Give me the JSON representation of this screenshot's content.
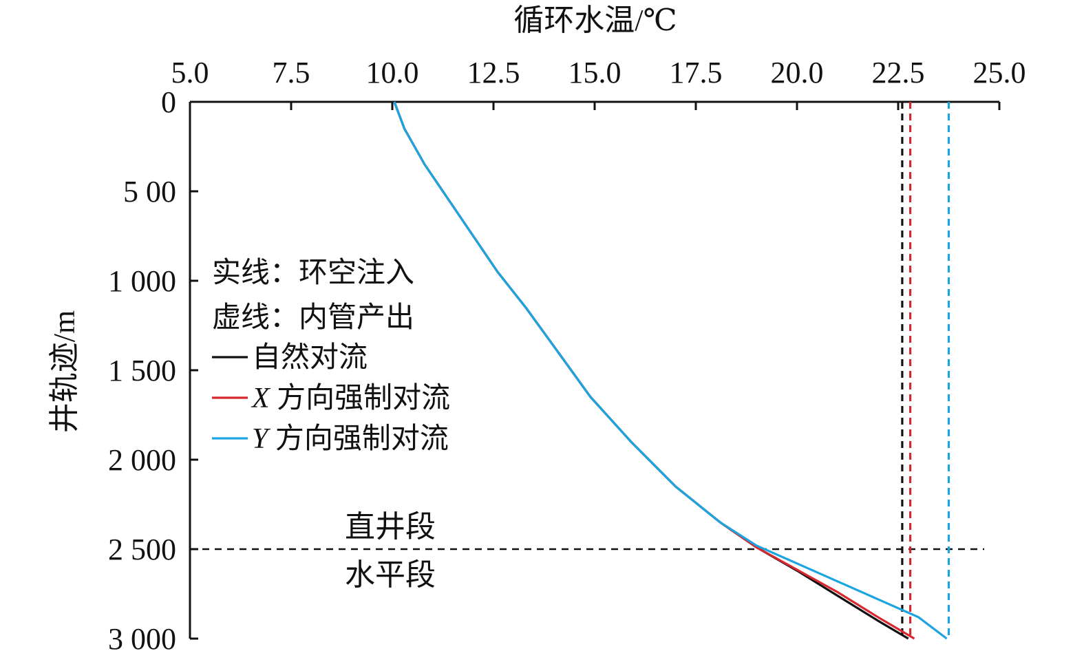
{
  "chart_data": {
    "type": "line",
    "xlabel": "循环水温/℃",
    "ylabel": "井轨迹/m",
    "x_axis_position": "top",
    "y_axis_inverted": true,
    "xlim": [
      5.0,
      25.0
    ],
    "ylim": [
      0,
      3000
    ],
    "x_ticks": [
      "5.0",
      "7.5",
      "10.0",
      "12.5",
      "15.0",
      "17.5",
      "20.0",
      "22.5",
      "25.0"
    ],
    "y_ticks": [
      "0",
      "5 00",
      "1 000",
      "1 500",
      "2 000",
      "2 500",
      "3 000"
    ],
    "x_tick_values": [
      5.0,
      7.5,
      10.0,
      12.5,
      15.0,
      17.5,
      20.0,
      22.5,
      25.0
    ],
    "y_tick_values": [
      0,
      500,
      1000,
      1500,
      2000,
      2500,
      3000
    ],
    "grid": false,
    "legend": {
      "placement": "left-middle",
      "line1": "实线：环空注入",
      "line2": "虚线：内管产出",
      "items": [
        {
          "label": "自然对流",
          "prefix": "",
          "color": "#111111"
        },
        {
          "label": "方向强制对流",
          "prefix": "X",
          "color": "#d7282f"
        },
        {
          "label": "方向强制对流",
          "prefix": "Y",
          "color": "#1ba5e0"
        }
      ]
    },
    "colors": {
      "natural": "#111111",
      "x_forced": "#d7282f",
      "y_forced": "#1ba5e0"
    },
    "boundary": {
      "depth": 2500,
      "label_above": "直井段",
      "label_below": "水平段"
    },
    "series": [
      {
        "name": "自然对流",
        "style": "solid",
        "color": "#111111",
        "points": [
          [
            10.05,
            0
          ],
          [
            10.3,
            150
          ],
          [
            10.8,
            350
          ],
          [
            11.4,
            550
          ],
          [
            12.0,
            750
          ],
          [
            12.6,
            950
          ],
          [
            13.3,
            1150
          ],
          [
            14.1,
            1400
          ],
          [
            14.9,
            1650
          ],
          [
            15.9,
            1900
          ],
          [
            17.0,
            2150
          ],
          [
            18.1,
            2350
          ],
          [
            19.0,
            2490
          ],
          [
            20.0,
            2620
          ],
          [
            21.0,
            2760
          ],
          [
            22.0,
            2900
          ],
          [
            22.75,
            3000
          ]
        ]
      },
      {
        "name": "X 方向强制对流",
        "style": "solid",
        "color": "#d7282f",
        "points": [
          [
            10.05,
            0
          ],
          [
            10.3,
            150
          ],
          [
            10.8,
            350
          ],
          [
            11.4,
            550
          ],
          [
            12.0,
            750
          ],
          [
            12.6,
            950
          ],
          [
            13.3,
            1150
          ],
          [
            14.1,
            1400
          ],
          [
            14.9,
            1650
          ],
          [
            15.9,
            1900
          ],
          [
            17.0,
            2150
          ],
          [
            18.1,
            2350
          ],
          [
            19.0,
            2490
          ],
          [
            20.0,
            2615
          ],
          [
            21.0,
            2740
          ],
          [
            22.0,
            2880
          ],
          [
            22.9,
            3000
          ]
        ]
      },
      {
        "name": "Y 方向强制对流",
        "style": "solid",
        "color": "#1ba5e0",
        "points": [
          [
            10.05,
            0
          ],
          [
            10.3,
            150
          ],
          [
            10.8,
            350
          ],
          [
            11.4,
            550
          ],
          [
            12.0,
            750
          ],
          [
            12.6,
            950
          ],
          [
            13.3,
            1150
          ],
          [
            14.1,
            1400
          ],
          [
            14.9,
            1650
          ],
          [
            15.9,
            1900
          ],
          [
            17.0,
            2150
          ],
          [
            18.1,
            2350
          ],
          [
            19.0,
            2480
          ],
          [
            20.0,
            2580
          ],
          [
            21.0,
            2680
          ],
          [
            22.0,
            2780
          ],
          [
            23.0,
            2880
          ],
          [
            23.7,
            3000
          ]
        ]
      },
      {
        "name": "自然对流（内管产出）",
        "style": "dashed",
        "color": "#111111",
        "points": [
          [
            22.6,
            0
          ],
          [
            22.6,
            3000
          ]
        ]
      },
      {
        "name": "X 方向强制对流（内管产出）",
        "style": "dashed",
        "color": "#d7282f",
        "points": [
          [
            22.8,
            0
          ],
          [
            22.8,
            3000
          ]
        ]
      },
      {
        "name": "Y 方向强制对流（内管产出）",
        "style": "dashed",
        "color": "#1ba5e0",
        "points": [
          [
            23.75,
            0
          ],
          [
            23.75,
            3000
          ]
        ]
      }
    ]
  }
}
